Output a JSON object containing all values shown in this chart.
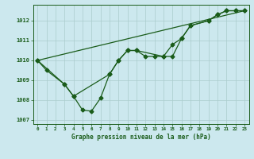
{
  "title": "Graphe pression niveau de la mer (hPa)",
  "background_color": "#cce8ee",
  "grid_color": "#aacccc",
  "line_color": "#1a5c1a",
  "xlim": [
    -0.5,
    23.5
  ],
  "ylim": [
    1006.8,
    1012.8
  ],
  "yticks": [
    1007,
    1008,
    1009,
    1010,
    1011,
    1012
  ],
  "xticks": [
    0,
    1,
    2,
    3,
    4,
    5,
    6,
    7,
    8,
    9,
    10,
    11,
    12,
    13,
    14,
    15,
    16,
    17,
    18,
    19,
    20,
    21,
    22,
    23
  ],
  "series_data": {
    "line1": {
      "x": [
        0,
        1,
        3,
        4,
        5,
        6,
        7,
        8,
        9,
        10,
        11,
        12,
        13,
        14,
        15,
        16,
        17,
        19,
        20,
        21,
        22,
        23
      ],
      "y": [
        1010.0,
        1009.5,
        1008.8,
        1008.2,
        1007.5,
        1007.45,
        1008.1,
        1009.3,
        1010.0,
        1010.5,
        1010.5,
        1010.2,
        1010.2,
        1010.2,
        1010.2,
        1011.1,
        1011.75,
        1012.0,
        1012.3,
        1012.5,
        1012.5,
        1012.5
      ]
    },
    "line2": {
      "x": [
        0,
        23
      ],
      "y": [
        1010.0,
        1012.5
      ]
    },
    "line3": {
      "x": [
        0,
        3,
        4,
        8,
        9,
        10,
        11,
        14,
        15,
        16,
        17,
        19,
        20,
        21,
        22,
        23
      ],
      "y": [
        1010.0,
        1008.8,
        1008.2,
        1009.3,
        1010.0,
        1010.5,
        1010.5,
        1010.2,
        1010.8,
        1011.1,
        1011.75,
        1012.0,
        1012.3,
        1012.5,
        1012.5,
        1012.5
      ]
    }
  }
}
